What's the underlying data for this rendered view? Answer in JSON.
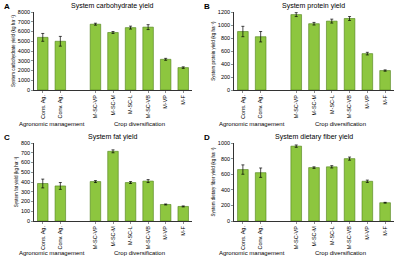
{
  "chart_data": [
    {
      "type": "bar",
      "panel": "A",
      "title": "System carbohydrate yield",
      "y_label": "System carbohydrate yield (kg ha⁻¹)",
      "categories": [
        "Cons. Ag.",
        "Conv. Ag.",
        null,
        "M-SC-VP",
        "M-SC-M",
        "M-SC-L",
        "M-SC-VB",
        "M-VP",
        "M-F"
      ],
      "values": [
        5400,
        5000,
        null,
        6750,
        5900,
        6400,
        6450,
        3150,
        2300
      ],
      "errors": [
        400,
        500,
        null,
        100,
        100,
        150,
        250,
        100,
        80
      ],
      "color": "#8dc63f",
      "ylim": [
        0,
        8000
      ],
      "yticks": [
        0,
        1000,
        2000,
        3000,
        4000,
        5000,
        6000,
        7000,
        8000
      ],
      "grid": false,
      "annotations": [
        "Agronomic management",
        "Crop diversification"
      ]
    },
    {
      "type": "bar",
      "panel": "B",
      "title": "System protein yield",
      "y_label": "System protein yield (kg ha⁻¹)",
      "categories": [
        "Cons. Ag.",
        "Conv. Ag.",
        null,
        "M-SC-VP",
        "M-SC-M",
        "M-SC-L",
        "M-SC-VB",
        "M-VP",
        "M-F"
      ],
      "values": [
        900,
        820,
        null,
        1160,
        1020,
        1060,
        1100,
        560,
        300
      ],
      "errors": [
        80,
        80,
        null,
        30,
        20,
        30,
        30,
        20,
        10
      ],
      "color": "#8dc63f",
      "ylim": [
        0,
        1200
      ],
      "yticks": [
        0,
        200,
        400,
        600,
        800,
        1000,
        1200
      ],
      "grid": false,
      "annotations": [
        "Agronomic management",
        "Crop diversification"
      ]
    },
    {
      "type": "bar",
      "panel": "C",
      "title": "System fat yield",
      "y_label": "System fat yield (kg ha⁻¹)",
      "categories": [
        "Cons. Ag.",
        "Conv. Ag.",
        null,
        "M-SC-VP",
        "M-SC-M",
        "M-SC-L",
        "M-SC-VB",
        "M-VP",
        "M-F"
      ],
      "values": [
        385,
        360,
        null,
        405,
        715,
        395,
        410,
        170,
        150
      ],
      "errors": [
        45,
        35,
        null,
        10,
        15,
        10,
        15,
        5,
        5
      ],
      "color": "#8dc63f",
      "ylim": [
        0,
        800
      ],
      "yticks": [
        0,
        100,
        200,
        300,
        400,
        500,
        600,
        700,
        800
      ],
      "grid": false,
      "annotations": [
        "Agronomic management",
        "Crop diversification"
      ]
    },
    {
      "type": "bar",
      "panel": "D",
      "title": "System dietary fiber yield",
      "y_label": "System dietary fiber yield (kg ha⁻¹)",
      "categories": [
        "Cons. Ag.",
        "Conv. Ag.",
        null,
        "M-SC-VP",
        "M-SC-M",
        "M-SC-L",
        "M-SC-VB",
        "M-VP",
        "M-F"
      ],
      "values": [
        660,
        620,
        null,
        960,
        685,
        695,
        800,
        510,
        235
      ],
      "errors": [
        60,
        60,
        null,
        15,
        10,
        15,
        20,
        15,
        5
      ],
      "color": "#8dc63f",
      "ylim": [
        0,
        1000
      ],
      "yticks": [
        0,
        200,
        400,
        600,
        800,
        1000
      ],
      "grid": false,
      "annotations": [
        "Agronomic management",
        "Crop diversification"
      ]
    }
  ]
}
